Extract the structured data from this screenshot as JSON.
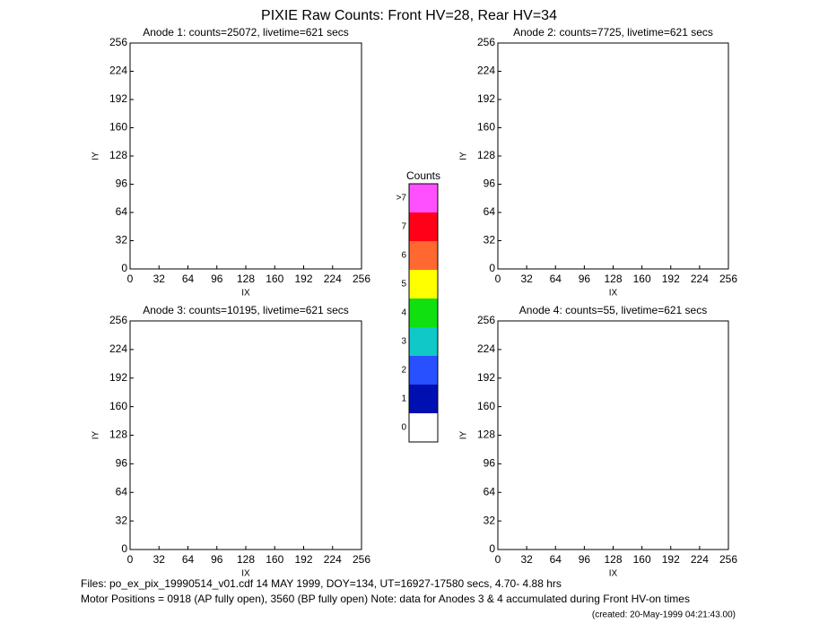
{
  "title": "PIXIE Raw Counts:  Front HV=28, Rear HV=34",
  "chart_data": [
    {
      "type": "heatmap",
      "title": "Anode 1: counts=25072, livetime=621 secs",
      "xlabel": "IX",
      "ylabel": "IY",
      "xlim": [
        0,
        256
      ],
      "ylim": [
        0,
        256
      ],
      "xticks": [
        0,
        32,
        64,
        96,
        128,
        160,
        192,
        224,
        256
      ],
      "yticks": [
        0,
        32,
        64,
        96,
        128,
        160,
        192,
        224,
        256
      ]
    },
    {
      "type": "heatmap",
      "title": "Anode 2: counts=7725, livetime=621 secs",
      "xlabel": "IX",
      "ylabel": "IY",
      "xlim": [
        0,
        256
      ],
      "ylim": [
        0,
        256
      ],
      "xticks": [
        0,
        32,
        64,
        96,
        128,
        160,
        192,
        224,
        256
      ],
      "yticks": [
        0,
        32,
        64,
        96,
        128,
        160,
        192,
        224,
        256
      ]
    },
    {
      "type": "heatmap",
      "title": "Anode 3: counts=10195, livetime=621 secs",
      "xlabel": "IX",
      "ylabel": "IY",
      "xlim": [
        0,
        256
      ],
      "ylim": [
        0,
        256
      ],
      "xticks": [
        0,
        32,
        64,
        96,
        128,
        160,
        192,
        224,
        256
      ],
      "yticks": [
        0,
        32,
        64,
        96,
        128,
        160,
        192,
        224,
        256
      ]
    },
    {
      "type": "heatmap",
      "title": "Anode 4: counts=55, livetime=621 secs",
      "xlabel": "IX",
      "ylabel": "IY",
      "xlim": [
        0,
        256
      ],
      "ylim": [
        0,
        256
      ],
      "xticks": [
        0,
        32,
        64,
        96,
        128,
        160,
        192,
        224,
        256
      ],
      "yticks": [
        0,
        32,
        64,
        96,
        128,
        160,
        192,
        224,
        256
      ]
    }
  ],
  "colorbar": {
    "title": "Counts",
    "labels": [
      "0",
      "1",
      "2",
      "3",
      "4",
      "5",
      "6",
      "7",
      ">7"
    ],
    "colors": [
      "#ffffff",
      "#0010b0",
      "#2850ff",
      "#10c8c8",
      "#10e010",
      "#ffff00",
      "#ff6830",
      "#ff0018",
      "#ff50ff"
    ]
  },
  "footer": [
    "Files: po_ex_pix_19990514_v01.cdf    14 MAY 1999, DOY=134, UT=16927-17580 secs,  4.70- 4.88 hrs",
    "Motor Positions = 0918 (AP fully open), 3560 (BP fully open)    Note: data for Anodes 3 & 4 accumulated during Front HV-on times",
    "(created: 20-May-1999 04:21:43.00)"
  ]
}
